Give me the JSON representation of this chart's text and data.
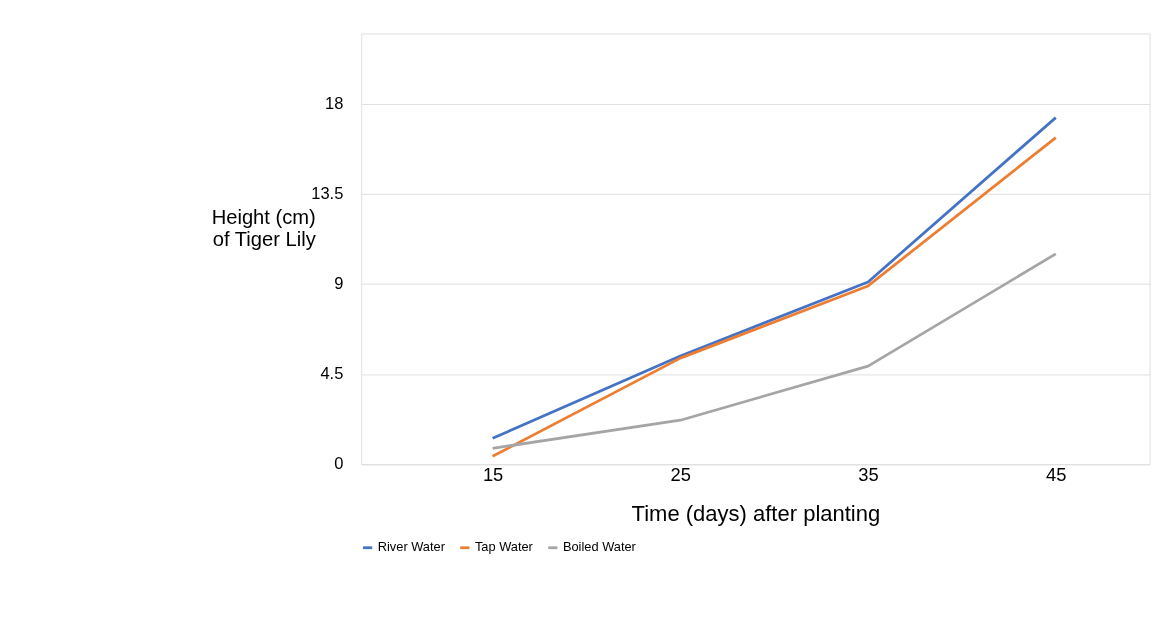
{
  "chart_data": {
    "type": "line",
    "xlabel": "Time (days) after planting",
    "ylabel": "Height (cm)\nof Tiger Lily",
    "x": [
      15,
      25,
      35,
      45
    ],
    "series": [
      {
        "name": "River Water",
        "color": "#4472c4",
        "values": [
          1.3,
          5.4,
          9.1,
          17.3
        ]
      },
      {
        "name": "Tap Water",
        "color": "#ed7d31",
        "values": [
          0.4,
          5.3,
          8.9,
          16.3
        ]
      },
      {
        "name": "Boiled Water",
        "color": "#a5a5a5",
        "values": [
          0.8,
          2.2,
          4.9,
          10.5
        ]
      }
    ],
    "xlim": [
      8,
      50
    ],
    "xticks": [
      15,
      25,
      35,
      45
    ],
    "ylim": [
      0,
      21.5
    ],
    "yticks": [
      0,
      4.5,
      9,
      13.5,
      18
    ],
    "grid": "y",
    "legend": "bottom",
    "marker": "none",
    "line_style": "solid"
  }
}
